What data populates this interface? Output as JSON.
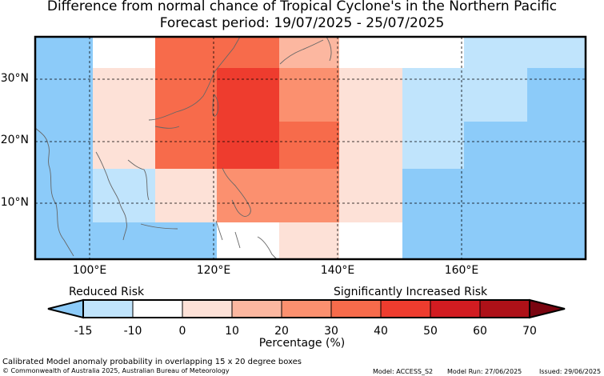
{
  "title": {
    "line1": "Difference from normal chance of Tropical Cyclone's in the Northern Pacific",
    "line2": "Forecast period: 19/07/2025 - 25/07/2025"
  },
  "map": {
    "lat_labels": [
      "30°N",
      "20°N",
      "10°N"
    ],
    "lon_labels": [
      "100°E",
      "120°E",
      "140°E",
      "160°E"
    ],
    "extent": {
      "lon": [
        91,
        181
      ],
      "lat": [
        1,
        37
      ]
    }
  },
  "legend": {
    "reduced_label": "Reduced Risk",
    "increased_label": "Significantly Increased Risk",
    "ticks": [
      "-15",
      "-10",
      "0",
      "10",
      "20",
      "30",
      "40",
      "50",
      "60",
      "70"
    ],
    "colors": [
      "#c0e4fc",
      "#ffffff",
      "#fde1d7",
      "#fcb7a0",
      "#fb906f",
      "#f76b4b",
      "#ee3c2e",
      "#d21c21",
      "#ae1118"
    ],
    "under_color": "#8ccbf9",
    "over_color": "#7a0510",
    "label": "Percentage (%)"
  },
  "footer": {
    "description": "Calibrated Model anomaly probability in overlapping 15 x 20 degree boxes",
    "copyright": "© Commonwealth of Australia 2025, Australian Bureau of Meteorology",
    "model": "Model: ACCESS_S2",
    "model_run": "Model Run: 27/06/2025",
    "issued": "Issued: 29/06/2025"
  }
}
